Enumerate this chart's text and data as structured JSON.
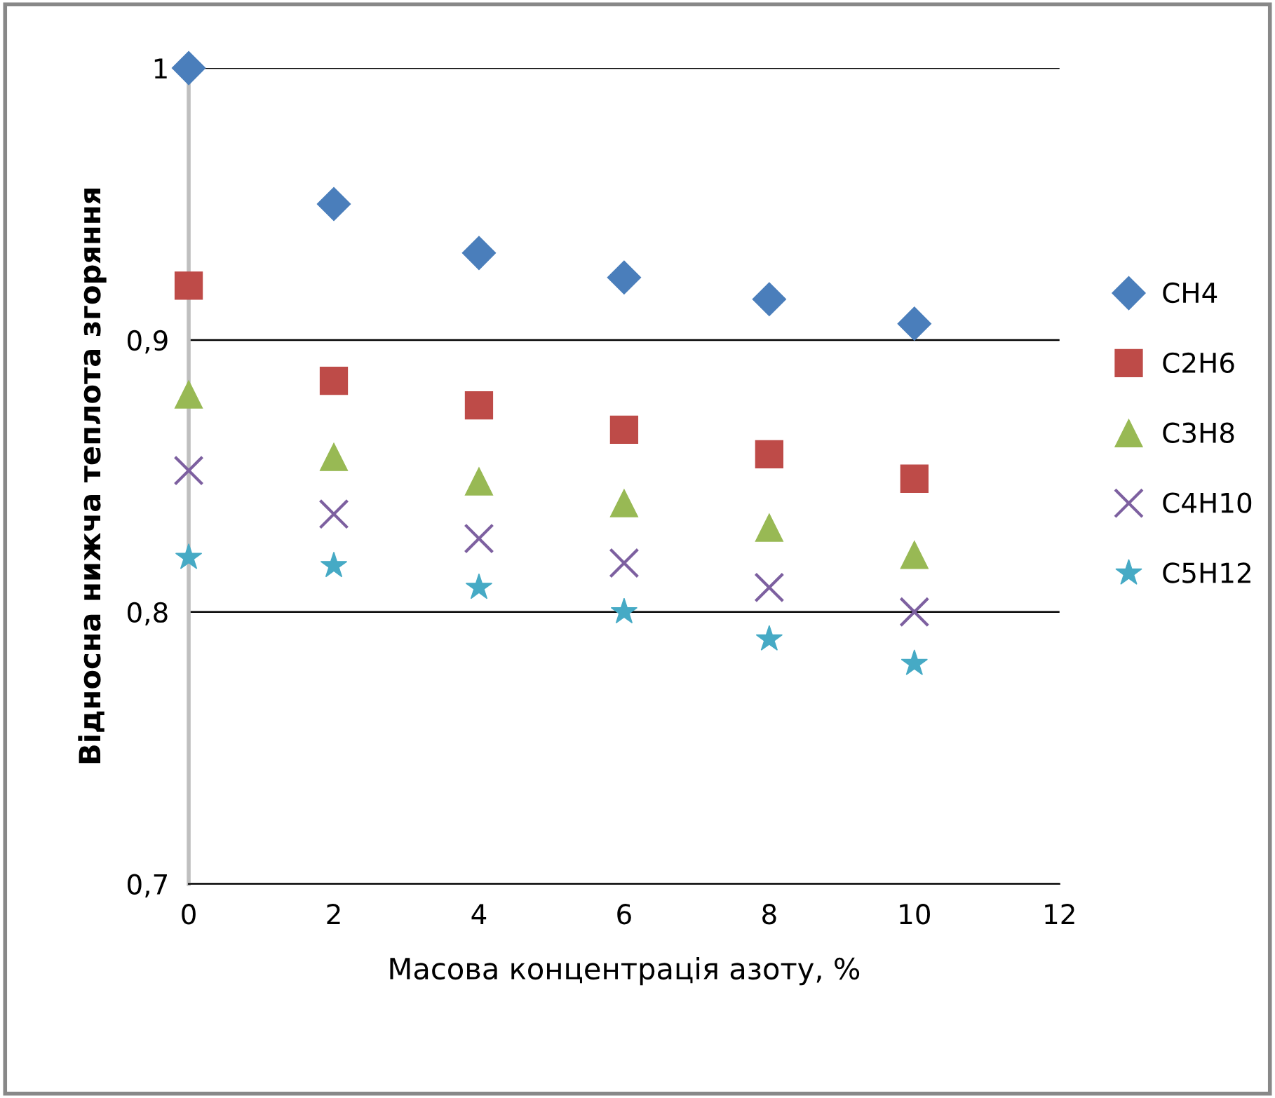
{
  "chart_data": {
    "type": "scatter",
    "xlabel": "Масова концентрація азоту, %",
    "ylabel": "Відносна нижча теплота згоряння",
    "x": [
      0,
      2,
      4,
      6,
      8,
      10
    ],
    "series": [
      {
        "name": "CH4",
        "color": "#4a7ebb",
        "marker": "diamond",
        "values": [
          1.0,
          0.95,
          0.932,
          0.923,
          0.915,
          0.906
        ]
      },
      {
        "name": "C2H6",
        "color": "#be4b48",
        "marker": "square",
        "values": [
          0.92,
          0.885,
          0.876,
          0.867,
          0.858,
          0.849
        ]
      },
      {
        "name": "C3H8",
        "color": "#98b954",
        "marker": "triangle",
        "values": [
          0.88,
          0.857,
          0.848,
          0.84,
          0.831,
          0.821
        ]
      },
      {
        "name": "C4H10",
        "color": "#7d60a0",
        "marker": "cross",
        "values": [
          0.852,
          0.836,
          0.827,
          0.818,
          0.809,
          0.8
        ]
      },
      {
        "name": "C5H12",
        "color": "#46aac5",
        "marker": "star",
        "values": [
          0.82,
          0.817,
          0.809,
          0.8,
          0.79,
          0.781
        ]
      }
    ],
    "xlim": [
      0,
      12
    ],
    "xticks": [
      0,
      2,
      4,
      6,
      8,
      10,
      12
    ],
    "ylim": [
      0.7,
      1.0
    ],
    "yticks": [
      {
        "value": 0.7,
        "label": "0,7"
      },
      {
        "value": 0.8,
        "label": "0,8"
      },
      {
        "value": 0.9,
        "label": "0,9"
      },
      {
        "value": 1.0,
        "label": "1"
      }
    ],
    "grid": "y",
    "legend": "right"
  }
}
